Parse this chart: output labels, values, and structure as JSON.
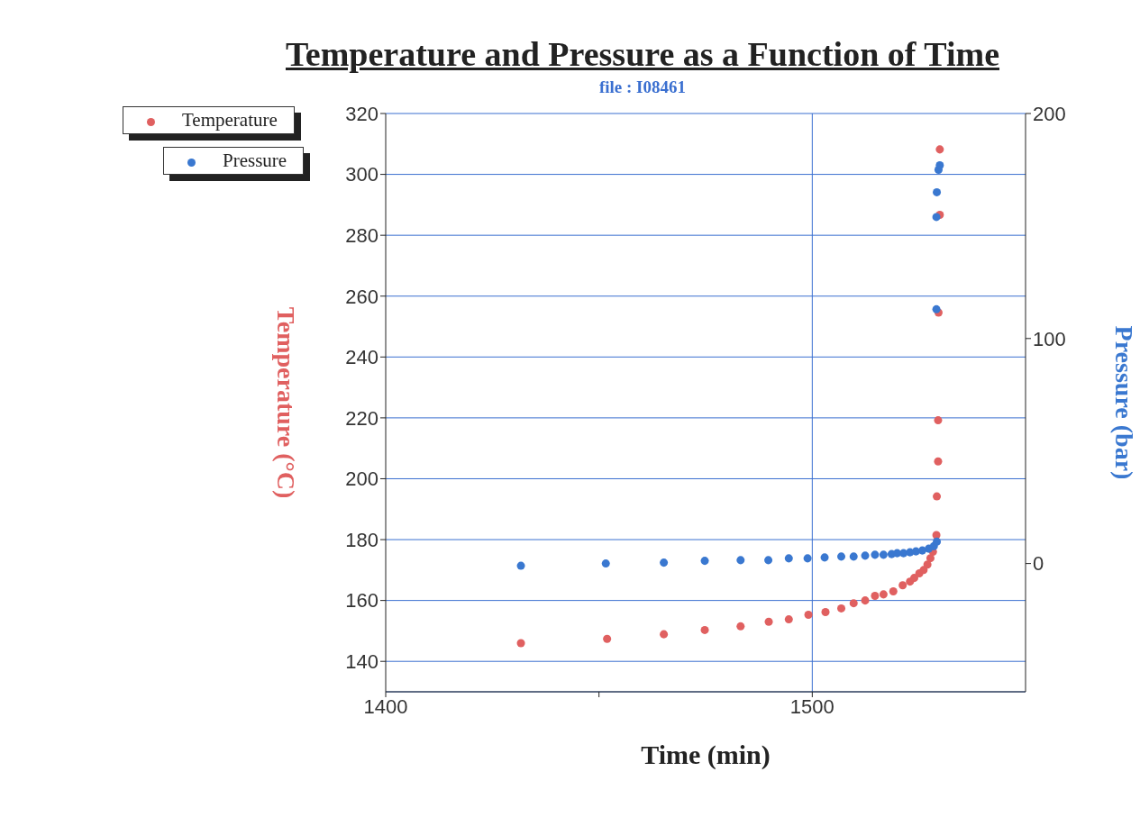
{
  "chart_data": {
    "type": "scatter",
    "title": "Temperature and Pressure as a Function of Time",
    "subtitle": "file : I08461",
    "xlabel": "Time (min)",
    "ylabel": "Temperature (°C)",
    "y2label": "Pressure (bar)",
    "xlim": [
      1400,
      1550
    ],
    "xticks": [
      1400,
      {
        "value": 1450,
        "label": null
      },
      1500
    ],
    "ylim": [
      130,
      320
    ],
    "yticks": [
      140,
      160,
      180,
      200,
      220,
      240,
      260,
      280,
      300,
      320
    ],
    "y2lim": [
      -57,
      200
    ],
    "y2ticks": [
      0,
      100,
      200
    ],
    "grid": "y",
    "legend": "top left",
    "marker": "circle",
    "ref_lines": [
      {
        "axis": "x",
        "value": 1500,
        "label": null,
        "color": "#3a6fd0"
      }
    ],
    "series": [
      {
        "name": "Temperature",
        "color": "#e06060",
        "x": [
          1431.7,
          1451.9,
          1465.2,
          1474.8,
          1483.2,
          1489.8,
          1494.5,
          1499.1,
          1503.1,
          1506.8,
          1509.7,
          1512.4,
          1514.7,
          1516.7,
          1519,
          1521.2,
          1522.9,
          1523.9,
          1525.1,
          1526.1,
          1527,
          1527.7,
          1528.3,
          1529.1,
          1529.2,
          1529.5,
          1529.5,
          1529.6,
          1529.9,
          1529.9
        ],
        "values": [
          146,
          147.4,
          148.9,
          150.3,
          151.5,
          153,
          153.8,
          155.3,
          156.2,
          157.4,
          159.1,
          160,
          161.5,
          162,
          163,
          165,
          166.2,
          167.4,
          168.9,
          170,
          171.8,
          173.9,
          176,
          181.5,
          194.2,
          205.7,
          219.2,
          254.6,
          286.7,
          308.2
        ]
      },
      {
        "name": "Pressure",
        "color": "#3a78d0",
        "axis": "y2",
        "x": [
          1431.7,
          1451.6,
          1465.2,
          1474.8,
          1483.2,
          1489.7,
          1494.5,
          1498.9,
          1502.9,
          1506.8,
          1509.7,
          1512.4,
          1514.7,
          1516.7,
          1518.6,
          1519.9,
          1521.4,
          1522.9,
          1524.3,
          1525.8,
          1527.3,
          1528.5,
          1529.2,
          1529.1,
          1529.1,
          1529.2,
          1529.6,
          1529.9
        ],
        "values": [
          -1,
          0,
          0.4,
          1.2,
          1.5,
          1.5,
          2.3,
          2.3,
          2.7,
          3.1,
          3.1,
          3.5,
          3.9,
          3.9,
          4.2,
          4.6,
          4.6,
          5,
          5.4,
          5.8,
          6.6,
          7.7,
          9.7,
          113,
          154,
          165,
          175,
          177
        ]
      }
    ]
  }
}
